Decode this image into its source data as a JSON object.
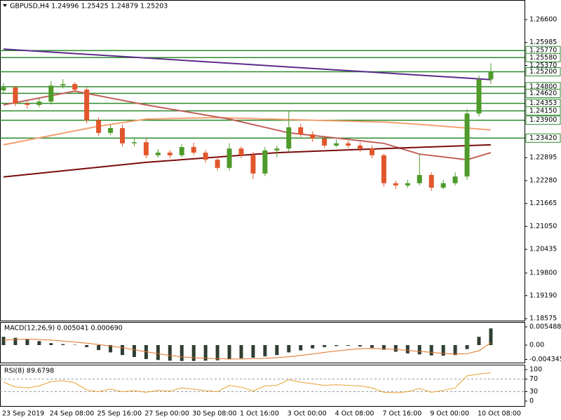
{
  "chart_data": [
    {
      "type": "candlestick",
      "title": "GBPUSD,H4  1.24996 1.25425 1.24879 1.25203",
      "categories": [
        "23 Sep 2019",
        null,
        null,
        null,
        "24 Sep 08:00",
        null,
        null,
        null,
        "25 Sep 16:00",
        null,
        null,
        null,
        "27 Sep 00:00",
        null,
        null,
        null,
        "30 Sep 08:00",
        null,
        null,
        null,
        "1 Oct 16:00",
        null,
        null,
        null,
        "3 Oct 00:00",
        null,
        null,
        null,
        "4 Oct 08:00",
        null,
        null,
        null,
        "7 Oct 16:00",
        null,
        null,
        null,
        "9 Oct 00:00",
        null,
        null,
        null,
        "10 Oct 08:00",
        null
      ],
      "open": [
        1.247,
        1.2478,
        1.2435,
        1.2431,
        1.244,
        1.2483,
        1.2487,
        1.2472,
        1.239,
        1.2356,
        1.2369,
        1.2328,
        1.2331,
        1.2296,
        1.2303,
        1.2296,
        1.2318,
        1.2303,
        1.2284,
        1.2262,
        1.2314,
        1.2296,
        1.2247,
        1.2309,
        1.2314,
        1.2371,
        1.2352,
        1.2341,
        1.2322,
        1.2328,
        1.2322,
        1.2314,
        1.2296,
        1.2221,
        1.2215,
        1.2221,
        1.2243,
        1.2209,
        1.2221,
        1.2239,
        1.2408,
        1.24996
      ],
      "high": [
        1.249,
        1.2482,
        1.2442,
        1.2448,
        1.2495,
        1.25,
        1.2492,
        1.2478,
        1.2398,
        1.2378,
        1.2378,
        1.2342,
        1.234,
        1.2312,
        1.231,
        1.2326,
        1.233,
        1.231,
        1.2292,
        1.2328,
        1.232,
        1.2305,
        1.2318,
        1.2322,
        1.2415,
        1.238,
        1.236,
        1.2348,
        1.2338,
        1.2335,
        1.233,
        1.2322,
        1.23,
        1.2228,
        1.223,
        1.23,
        1.225,
        1.223,
        1.225,
        1.242,
        1.251,
        1.25425
      ],
      "low": [
        1.2462,
        1.2428,
        1.2422,
        1.2425,
        1.2432,
        1.2475,
        1.2465,
        1.2382,
        1.2348,
        1.235,
        1.232,
        1.232,
        1.2288,
        1.229,
        1.2288,
        1.229,
        1.2296,
        1.2276,
        1.2255,
        1.2255,
        1.2288,
        1.2232,
        1.224,
        1.229,
        1.2305,
        1.2345,
        1.2332,
        1.2315,
        1.2318,
        1.2315,
        1.2305,
        1.2288,
        1.2212,
        1.2205,
        1.2208,
        1.2215,
        1.22,
        1.2205,
        1.2215,
        1.223,
        1.24,
        1.24879
      ],
      "close": [
        1.2478,
        1.2435,
        1.2431,
        1.244,
        1.2483,
        1.2487,
        1.2472,
        1.239,
        1.2356,
        1.2369,
        1.2328,
        1.2331,
        1.2296,
        1.2303,
        1.2296,
        1.2318,
        1.2303,
        1.2284,
        1.2262,
        1.2314,
        1.2296,
        1.2247,
        1.2309,
        1.2314,
        1.2371,
        1.2352,
        1.2341,
        1.2322,
        1.2328,
        1.2322,
        1.2314,
        1.2296,
        1.2221,
        1.2215,
        1.2221,
        1.2243,
        1.2209,
        1.2221,
        1.2239,
        1.2408,
        1.2499,
        1.25203
      ],
      "up_color": "#4e9a2a",
      "down_color": "#e2562c",
      "ylim": [
        1.18523,
        1.27126
      ],
      "yticks": [
        {
          "value": 1.266,
          "label": "1.26600"
        },
        1.25985,
        {
          "value": 1.2537,
          "label": "1.25370"
        },
        1.22895,
        {
          "value": 1.2228,
          "label": "1.22280"
        },
        1.21665,
        {
          "value": 1.2105,
          "label": "1.21050"
        },
        1.20435,
        {
          "value": 1.198,
          "label": "1.19800"
        },
        {
          "value": 1.1919,
          "label": "1.19190"
        },
        1.18575
      ],
      "levels": [
        {
          "value": 1.2577,
          "label": "1.25770"
        },
        {
          "value": 1.2558,
          "label": "1.25580"
        },
        {
          "value": 1.252,
          "label": "1.25200"
        },
        {
          "value": 1.248,
          "label": "1.24800"
        },
        {
          "value": 1.2462,
          "label": "1.24620"
        },
        1.24353,
        {
          "value": 1.2415,
          "label": "1.24150"
        },
        {
          "value": 1.239,
          "label": "1.23900"
        },
        {
          "value": 1.2342,
          "label": "1.23420"
        }
      ],
      "level_color": "#2e8b2e",
      "series": [
        {
          "color": "#5b2c8a",
          "x": [
            0,
            41
          ],
          "values": [
            1.2581,
            1.2499
          ]
        },
        {
          "color": "#f4a070",
          "x": [
            0,
            8,
            12,
            18,
            26,
            32,
            35,
            41
          ],
          "values": [
            1.2324,
            1.2374,
            1.2393,
            1.2397,
            1.239,
            1.2385,
            1.2379,
            1.2364
          ]
        },
        {
          "color": "#c0605a",
          "x": [
            0,
            6,
            12,
            19,
            24,
            32,
            35,
            39,
            41
          ],
          "values": [
            1.2431,
            1.2468,
            1.2431,
            1.2393,
            1.2356,
            1.2328,
            1.2299,
            1.2284,
            1.2303
          ]
        },
        {
          "color": "#7a0a0a",
          "x": [
            0,
            12,
            23,
            32,
            41
          ],
          "values": [
            1.2238,
            1.2277,
            1.2303,
            1.2314,
            1.2324
          ]
        }
      ]
    },
    {
      "type": "macd",
      "title": "MACD(12,26,9) 0.005041 0.000690",
      "values": [
        0.0025,
        0.0022,
        0.0018,
        0.0012,
        0.0006,
        0.0003,
        0.0001,
        -0.0006,
        -0.0015,
        -0.0022,
        -0.003,
        -0.0036,
        -0.0042,
        -0.0045,
        -0.0047,
        -0.0048,
        -0.0048,
        -0.0047,
        -0.0046,
        -0.0043,
        -0.004,
        -0.0038,
        -0.0034,
        -0.003,
        -0.0022,
        -0.0016,
        -0.001,
        -0.0006,
        -0.0003,
        -0.0002,
        -0.0004,
        -0.0008,
        -0.0014,
        -0.002,
        -0.0025,
        -0.0028,
        -0.0031,
        -0.0032,
        -0.003,
        -0.0012,
        0.0025,
        0.005041
      ],
      "signal": [
        0.0015,
        0.0017,
        0.0018,
        0.0017,
        0.0015,
        0.0012,
        0.0009,
        0.0006,
        0.0002,
        -0.0003,
        -0.0008,
        -0.0014,
        -0.002,
        -0.0026,
        -0.0031,
        -0.0035,
        -0.0038,
        -0.004,
        -0.0041,
        -0.0042,
        -0.0042,
        -0.0041,
        -0.004,
        -0.0038,
        -0.0035,
        -0.0031,
        -0.0027,
        -0.0022,
        -0.0018,
        -0.0014,
        -0.0011,
        -0.001,
        -0.0011,
        -0.0013,
        -0.0016,
        -0.0019,
        -0.0022,
        -0.0025,
        -0.0027,
        -0.0026,
        -0.0017,
        0.00069
      ],
      "color": "#2f3f33",
      "signal_color": "#e07020",
      "ylim": [
        -0.00528,
        0.00697
      ],
      "yticks": [
        0.005488,
        {
          "value": 0,
          "label": "0.00"
        },
        -0.004345
      ]
    },
    {
      "type": "line",
      "title": "RSI(8) 89.6798",
      "values": [
        60,
        45,
        42,
        48,
        62,
        65,
        58,
        35,
        30,
        38,
        30,
        33,
        28,
        34,
        32,
        42,
        38,
        33,
        30,
        50,
        44,
        32,
        48,
        50,
        68,
        60,
        55,
        50,
        52,
        50,
        48,
        42,
        28,
        26,
        30,
        40,
        28,
        34,
        42,
        80,
        86,
        89.6798
      ],
      "color": "#e8a030",
      "ylim": [
        -15.6,
        113.3
      ],
      "yticks": [
        100,
        70,
        30,
        0
      ],
      "levels": [
        70,
        30
      ]
    }
  ]
}
